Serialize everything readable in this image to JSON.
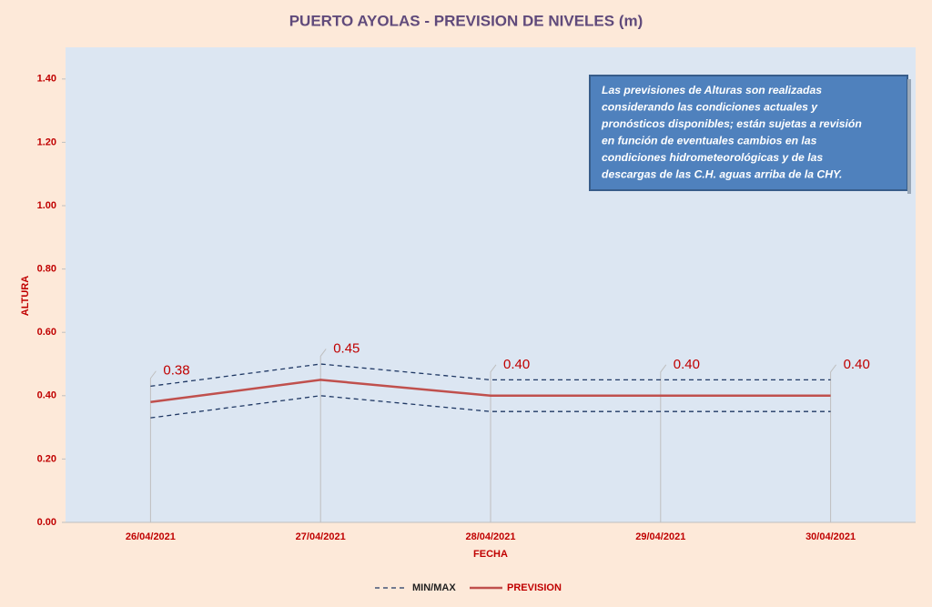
{
  "chart_data": {
    "type": "line",
    "title": "PUERTO AYOLAS - PREVISION DE NIVELES (m)",
    "x_label": "FECHA",
    "y_label": "ALTURA",
    "categories": [
      "26/04/2021",
      "27/04/2021",
      "28/04/2021",
      "29/04/2021",
      "30/04/2021"
    ],
    "series": [
      {
        "name": "MIN/MAX",
        "color": "#1f3864",
        "dashed": true,
        "values": [
          0.43,
          0.5,
          0.45,
          0.45,
          0.45
        ],
        "lower": [
          0.33,
          0.4,
          0.35,
          0.35,
          0.35
        ]
      },
      {
        "name": "PREVISION",
        "color": "#c0504d",
        "dashed": false,
        "values": [
          0.38,
          0.45,
          0.4,
          0.4,
          0.4
        ],
        "value_labels": [
          "0.38",
          "0.45",
          "0.40",
          "0.40",
          "0.40"
        ]
      }
    ],
    "ylim": [
      0,
      1.5
    ],
    "yticks": [
      {
        "value": 0,
        "label": "0.00"
      },
      {
        "value": 0.2,
        "label": "0.20"
      },
      {
        "value": 0.4,
        "label": "0.40"
      },
      {
        "value": 0.6,
        "label": "0.60"
      },
      {
        "value": 0.8,
        "label": "0.80"
      },
      {
        "value": 1.0,
        "label": "1.00"
      },
      {
        "value": 1.2,
        "label": "1.20"
      },
      {
        "value": 1.4,
        "label": "1.40"
      }
    ],
    "annotation": [
      "Las previsiones de Alturas son realizadas",
      "considerando las condiciones actuales y",
      "pronósticos disponibles;  están sujetas a revisión",
      "en función de eventuales cambios en las",
      "condiciones hidrometeorológicas y de las",
      "descargas de las C.H. aguas arriba de la CHY."
    ]
  }
}
